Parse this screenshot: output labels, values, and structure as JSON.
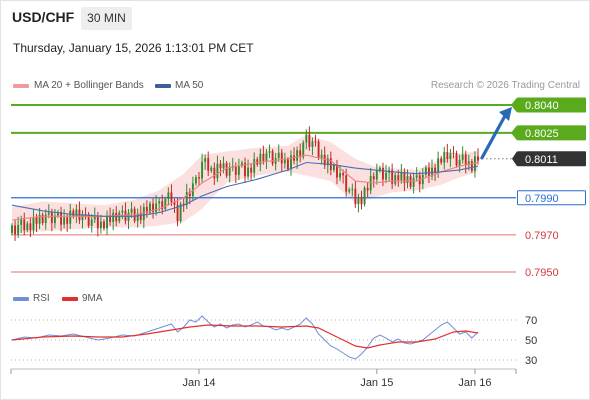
{
  "header": {
    "symbol": "USD/CHF",
    "timeframe": "30 MIN",
    "datetime": "Thursday, January 15, 2026 1:13:01 PM CET"
  },
  "legend": {
    "ma20": "MA 20 + Bollinger Bands",
    "ma50": "MA 50",
    "credit": "Research © 2026 Trading Central",
    "rsi": "RSI",
    "ma9": "9MA"
  },
  "colors": {
    "candle_up": "#2e8b2e",
    "candle_down": "#c62828",
    "bollinger_fill": "#f9c6c6",
    "ma20": "#f08080",
    "ma50": "#4a6fb5",
    "resistance": "#5aaa1e",
    "support": "#2a6fd4",
    "lower_support": "#e07070",
    "current": "#333333",
    "rsi": "#6f8fd8",
    "ma9": "#e03030"
  },
  "chart_data": [
    {
      "type": "candlestick",
      "symbol": "USD/CHF",
      "interval": "30 MIN",
      "x_ticks": [
        "Jan 14",
        "Jan 15",
        "Jan 16"
      ],
      "ylim": [
        0.7943,
        0.8047
      ],
      "ohlc_close_path": [
        [
          0,
          0.7973
        ],
        [
          4,
          0.7975
        ],
        [
          8,
          0.7977
        ],
        [
          12,
          0.798
        ],
        [
          16,
          0.7978
        ],
        [
          20,
          0.7981
        ],
        [
          24,
          0.7979
        ],
        [
          26,
          0.7977
        ],
        [
          28,
          0.7976
        ],
        [
          32,
          0.7978
        ],
        [
          36,
          0.7981
        ],
        [
          40,
          0.798
        ],
        [
          44,
          0.7983
        ],
        [
          48,
          0.7986
        ],
        [
          52,
          0.799
        ],
        [
          54,
          0.7981
        ],
        [
          56,
          0.7987
        ],
        [
          58,
          0.7993
        ],
        [
          60,
          0.7999
        ],
        [
          62,
          0.8008
        ],
        [
          64,
          0.8007
        ],
        [
          66,
          0.8004
        ],
        [
          68,
          0.8007
        ],
        [
          70,
          0.8004
        ],
        [
          72,
          0.8005
        ],
        [
          74,
          0.8006
        ],
        [
          76,
          0.8004
        ],
        [
          78,
          0.8007
        ],
        [
          80,
          0.8009
        ],
        [
          82,
          0.8012
        ],
        [
          84,
          0.8013
        ],
        [
          86,
          0.801
        ],
        [
          88,
          0.8011
        ],
        [
          90,
          0.8009
        ],
        [
          92,
          0.8011
        ],
        [
          94,
          0.8014
        ],
        [
          96,
          0.8022
        ],
        [
          98,
          0.8019
        ],
        [
          100,
          0.8014
        ],
        [
          102,
          0.8011
        ],
        [
          104,
          0.8006
        ],
        [
          106,
          0.8003
        ],
        [
          108,
          0.8
        ],
        [
          110,
          0.7993
        ],
        [
          112,
          0.7989
        ],
        [
          114,
          0.799
        ],
        [
          116,
          0.7995
        ],
        [
          118,
          0.8002
        ],
        [
          120,
          0.8004
        ],
        [
          122,
          0.8002
        ],
        [
          124,
          0.8
        ],
        [
          126,
          0.8003
        ],
        [
          128,
          0.7999
        ],
        [
          130,
          0.7998
        ],
        [
          132,
          0.8
        ],
        [
          134,
          0.8001
        ],
        [
          136,
          0.8004
        ],
        [
          138,
          0.8007
        ],
        [
          140,
          0.801
        ],
        [
          142,
          0.8013
        ],
        [
          144,
          0.8012
        ],
        [
          146,
          0.8009
        ],
        [
          148,
          0.801
        ],
        [
          150,
          0.8008
        ],
        [
          152,
          0.8011
        ]
      ],
      "bollinger_upper": [
        [
          0,
          0.7985
        ],
        [
          10,
          0.7988
        ],
        [
          20,
          0.7987
        ],
        [
          30,
          0.7986
        ],
        [
          40,
          0.7989
        ],
        [
          48,
          0.7994
        ],
        [
          56,
          0.8003
        ],
        [
          62,
          0.8013
        ],
        [
          70,
          0.8015
        ],
        [
          80,
          0.8017
        ],
        [
          90,
          0.8018
        ],
        [
          96,
          0.8024
        ],
        [
          104,
          0.802
        ],
        [
          112,
          0.8011
        ],
        [
          118,
          0.8007
        ],
        [
          124,
          0.8006
        ],
        [
          132,
          0.8005
        ],
        [
          140,
          0.8011
        ],
        [
          146,
          0.8014
        ],
        [
          152,
          0.8015
        ]
      ],
      "bollinger_lower": [
        [
          0,
          0.7971
        ],
        [
          10,
          0.7972
        ],
        [
          20,
          0.7973
        ],
        [
          30,
          0.7974
        ],
        [
          40,
          0.7974
        ],
        [
          48,
          0.7975
        ],
        [
          56,
          0.7977
        ],
        [
          62,
          0.7984
        ],
        [
          70,
          0.7998
        ],
        [
          80,
          0.8002
        ],
        [
          90,
          0.8004
        ],
        [
          96,
          0.8002
        ],
        [
          104,
          0.7999
        ],
        [
          112,
          0.7987
        ],
        [
          118,
          0.799
        ],
        [
          124,
          0.7993
        ],
        [
          132,
          0.7994
        ],
        [
          140,
          0.7997
        ],
        [
          146,
          0.8001
        ],
        [
          152,
          0.8004
        ]
      ],
      "ma20": [
        [
          0,
          0.7978
        ],
        [
          10,
          0.798
        ],
        [
          20,
          0.798
        ],
        [
          30,
          0.798
        ],
        [
          40,
          0.7981
        ],
        [
          48,
          0.7984
        ],
        [
          56,
          0.799
        ],
        [
          62,
          0.7998
        ],
        [
          70,
          0.8006
        ],
        [
          80,
          0.8009
        ],
        [
          90,
          0.8011
        ],
        [
          96,
          0.8013
        ],
        [
          104,
          0.801
        ],
        [
          112,
          0.7999
        ],
        [
          118,
          0.7998
        ],
        [
          124,
          0.7999
        ],
        [
          132,
          0.7999
        ],
        [
          140,
          0.8004
        ],
        [
          146,
          0.8007
        ],
        [
          152,
          0.8009
        ]
      ],
      "ma50": [
        [
          0,
          0.7986
        ],
        [
          10,
          0.7983
        ],
        [
          20,
          0.7981
        ],
        [
          30,
          0.798
        ],
        [
          40,
          0.798
        ],
        [
          48,
          0.7982
        ],
        [
          56,
          0.7986
        ],
        [
          62,
          0.7991
        ],
        [
          70,
          0.7996
        ],
        [
          80,
          0.8
        ],
        [
          90,
          0.8005
        ],
        [
          96,
          0.8009
        ],
        [
          104,
          0.8008
        ],
        [
          112,
          0.8006
        ],
        [
          118,
          0.8005
        ],
        [
          124,
          0.8004
        ],
        [
          132,
          0.8003
        ],
        [
          140,
          0.8004
        ],
        [
          146,
          0.8005
        ],
        [
          152,
          0.8007
        ]
      ],
      "projection": {
        "from": 0.8011,
        "to": 0.804
      },
      "levels": [
        {
          "value": "0.8040",
          "kind": "resistance",
          "style": "filled"
        },
        {
          "value": "0.8025",
          "kind": "resistance",
          "style": "filled"
        },
        {
          "value": "0.8011",
          "kind": "current",
          "style": "filled"
        },
        {
          "value": "0.7990",
          "kind": "support",
          "style": "outlined"
        },
        {
          "value": "0.7970",
          "kind": "lower_support",
          "style": "text"
        },
        {
          "value": "0.7950",
          "kind": "lower_support",
          "style": "text"
        }
      ]
    },
    {
      "type": "line",
      "name": "RSI panel",
      "ylim": [
        22,
        78
      ],
      "y_ticks": [
        70,
        50,
        30
      ],
      "series": [
        {
          "name": "RSI",
          "points": [
            [
              0,
              50
            ],
            [
              4,
              53
            ],
            [
              8,
              52
            ],
            [
              12,
              55
            ],
            [
              16,
              54
            ],
            [
              20,
              56
            ],
            [
              24,
              53
            ],
            [
              28,
              50
            ],
            [
              32,
              52
            ],
            [
              36,
              55
            ],
            [
              40,
              54
            ],
            [
              44,
              58
            ],
            [
              48,
              62
            ],
            [
              52,
              66
            ],
            [
              54,
              58
            ],
            [
              56,
              63
            ],
            [
              58,
              70
            ],
            [
              60,
              68
            ],
            [
              62,
              74
            ],
            [
              64,
              68
            ],
            [
              66,
              63
            ],
            [
              68,
              66
            ],
            [
              70,
              62
            ],
            [
              72,
              65
            ],
            [
              74,
              66
            ],
            [
              76,
              63
            ],
            [
              78,
              65
            ],
            [
              80,
              68
            ],
            [
              82,
              64
            ],
            [
              84,
              63
            ],
            [
              86,
              60
            ],
            [
              88,
              62
            ],
            [
              90,
              60
            ],
            [
              92,
              63
            ],
            [
              94,
              66
            ],
            [
              96,
              72
            ],
            [
              98,
              66
            ],
            [
              100,
              56
            ],
            [
              102,
              50
            ],
            [
              104,
              44
            ],
            [
              106,
              41
            ],
            [
              108,
              37
            ],
            [
              110,
              33
            ],
            [
              112,
              31
            ],
            [
              114,
              36
            ],
            [
              116,
              43
            ],
            [
              118,
              52
            ],
            [
              120,
              55
            ],
            [
              122,
              52
            ],
            [
              124,
              48
            ],
            [
              126,
              51
            ],
            [
              128,
              47
            ],
            [
              130,
              46
            ],
            [
              132,
              48
            ],
            [
              134,
              50
            ],
            [
              136,
              55
            ],
            [
              138,
              60
            ],
            [
              140,
              65
            ],
            [
              142,
              68
            ],
            [
              144,
              62
            ],
            [
              146,
              56
            ],
            [
              148,
              58
            ],
            [
              150,
              52
            ],
            [
              152,
              58
            ]
          ]
        },
        {
          "name": "9MA",
          "points": [
            [
              0,
              50
            ],
            [
              10,
              53
            ],
            [
              20,
              54
            ],
            [
              28,
              53
            ],
            [
              36,
              53
            ],
            [
              44,
              56
            ],
            [
              52,
              60
            ],
            [
              58,
              63
            ],
            [
              64,
              65
            ],
            [
              72,
              64
            ],
            [
              80,
              64
            ],
            [
              88,
              63
            ],
            [
              96,
              64
            ],
            [
              100,
              62
            ],
            [
              104,
              56
            ],
            [
              108,
              50
            ],
            [
              112,
              44
            ],
            [
              116,
              42
            ],
            [
              120,
              45
            ],
            [
              126,
              48
            ],
            [
              132,
              48
            ],
            [
              138,
              51
            ],
            [
              144,
              58
            ],
            [
              148,
              59
            ],
            [
              152,
              57
            ]
          ]
        }
      ]
    }
  ]
}
